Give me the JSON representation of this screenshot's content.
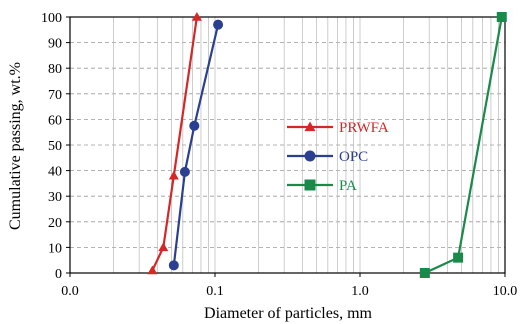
{
  "chart_data": {
    "type": "line",
    "title": "",
    "xlabel": "Diameter of particles, mm",
    "ylabel": "Cumulative passing, wt.%",
    "xscale": "log",
    "xlim": [
      0.01,
      10
    ],
    "ylim": [
      0,
      100
    ],
    "xticks": [
      "0.0",
      "0.1",
      "1.0",
      "10.0"
    ],
    "yticks": [
      "0",
      "10",
      "20",
      "30",
      "40",
      "50",
      "60",
      "70",
      "80",
      "90",
      "100"
    ],
    "grid": {
      "x_minor": true,
      "y_major": true,
      "style": "dashed"
    },
    "legend": {
      "placement": "center"
    },
    "series": [
      {
        "name": "PRWFA",
        "color": "#d62728",
        "marker": "triangle",
        "x": [
          0.037,
          0.044,
          0.052,
          0.075
        ],
        "y": [
          1,
          10,
          38,
          100
        ]
      },
      {
        "name": "OPC",
        "color": "#2a3f8f",
        "marker": "circle",
        "x": [
          0.052,
          0.062,
          0.072,
          0.105
        ],
        "y": [
          3,
          39.5,
          57.5,
          97
        ]
      },
      {
        "name": "PA",
        "color": "#1a8a4a",
        "marker": "square",
        "x": [
          2.8,
          4.75,
          9.5
        ],
        "y": [
          0,
          6,
          100
        ]
      }
    ]
  }
}
